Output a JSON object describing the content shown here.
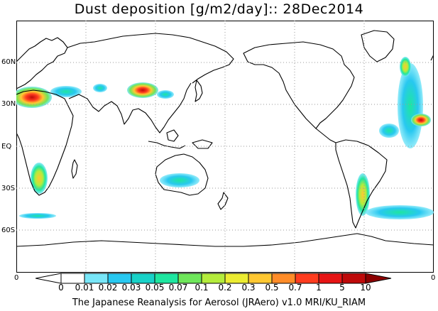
{
  "title": "Dust deposition [g/m2/day]:: 28Dec2014",
  "footer": "The Japanese Reanalysis for Aerosol (JRAero) v1.0 MRI/KU_RIAM",
  "y_axis": {
    "labels": [
      "60N",
      "30N",
      "EQ",
      "30S",
      "60S"
    ],
    "corner_bottom_left": "0",
    "corner_bottom_right": "0"
  },
  "colorbar": {
    "levels": [
      "0",
      "0.01",
      "0.02",
      "0.03",
      "0.05",
      "0.07",
      "0.1",
      "0.2",
      "0.3",
      "0.5",
      "0.7",
      "1",
      "5",
      "10"
    ],
    "colors": [
      "#ffffff",
      "#ffffff",
      "#78e6f8",
      "#28c8f0",
      "#18d2c8",
      "#1ee6a0",
      "#6ee65a",
      "#b4ec3c",
      "#ecec32",
      "#ffc832",
      "#ff8c28",
      "#ff3c1e",
      "#e61414",
      "#be0a0a",
      "#8c0000"
    ]
  },
  "map": {
    "projection": "equirectangular, centered 180",
    "gridlines": "dotted",
    "dust_regions": [
      "Sahara / North Africa",
      "Gobi / Taklamakan",
      "Arabian Peninsula",
      "Southern Africa",
      "Australia",
      "Patagonia",
      "North Atlantic",
      "North Pacific"
    ]
  },
  "colors": {
    "land_outline": "#000000",
    "grid": "#9a9a9a",
    "background": "#ffffff"
  }
}
